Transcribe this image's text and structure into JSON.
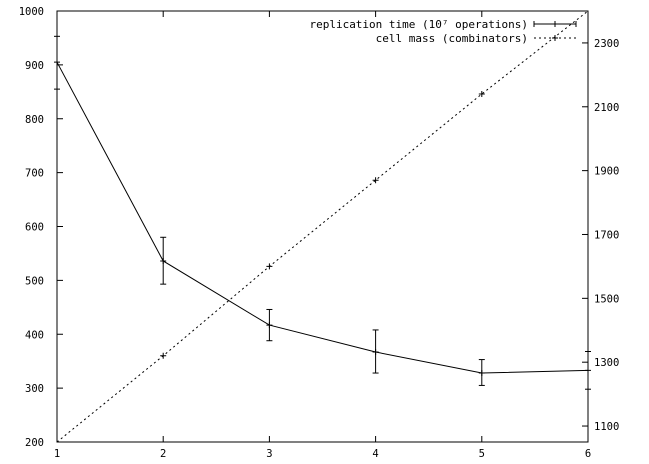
{
  "chart_data": {
    "type": "line",
    "title": "",
    "xlabel": "",
    "ylabel": "",
    "y2label": "",
    "x": [
      1,
      2,
      3,
      4,
      5,
      6
    ],
    "xticks": [
      1,
      2,
      3,
      4,
      5,
      6
    ],
    "xlim": [
      1,
      6
    ],
    "ylim": [
      200,
      1000
    ],
    "y2lim": [
      1050,
      2400
    ],
    "yticks": [
      200,
      300,
      400,
      500,
      600,
      700,
      800,
      900,
      1000
    ],
    "y2ticks": [
      1100,
      1300,
      1500,
      1700,
      1900,
      2100,
      2300
    ],
    "grid": false,
    "legend_position": "top-right",
    "series": [
      {
        "name": "replication time (10⁷ operations)",
        "axis": "left",
        "style": "solid",
        "points": "errorbars",
        "values": [
          905,
          536,
          417,
          367,
          328,
          333
        ],
        "err_low": [
          855,
          493,
          388,
          328,
          305,
          298
        ],
        "err_high": [
          953,
          580,
          446,
          408,
          353,
          368
        ]
      },
      {
        "name": "cell mass (combinators)",
        "axis": "right",
        "style": "dotted",
        "points": "plus",
        "values": [
          1050,
          1320,
          1600,
          1870,
          2140,
          2400
        ]
      }
    ]
  }
}
